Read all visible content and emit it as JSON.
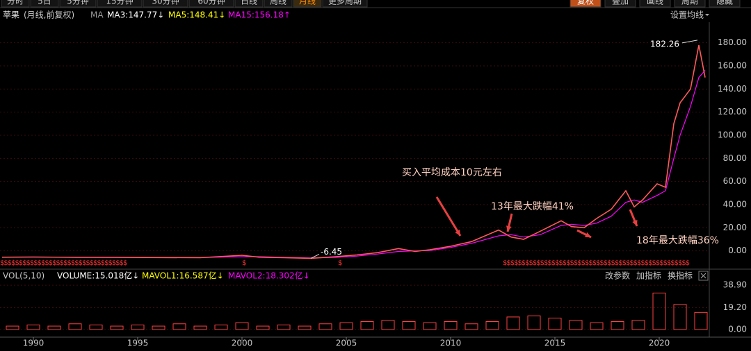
{
  "toolbar": {
    "tabs": [
      "分时",
      "5日",
      "5分钟",
      "15分钟",
      "30分钟",
      "60分钟",
      "日线",
      "周线",
      "月线",
      "更多周期"
    ],
    "active_tab": 8,
    "tools": [
      "复权",
      "叠加",
      "画线",
      "周期",
      "隐藏"
    ],
    "active_tool": 0
  },
  "info": {
    "name": "苹果",
    "mode": "(月线,前复权)",
    "ma_label": "MA",
    "ma3": "MA3:147.77↓",
    "ma5": "MA5:148.41↓",
    "ma15": "MA15:156.18↑",
    "settings": "设置均线"
  },
  "volume_info": {
    "label": "VOL(5,10)",
    "volume": "VOLUME:15.018亿↓",
    "mavol1": "MAVOL1:16.587亿↓",
    "mavol2": "MAVOL2:18.302亿↓",
    "buttons": [
      "改参数",
      "加指标",
      "换指标"
    ]
  },
  "chart_data": [
    {
      "type": "line",
      "color": "#ff5a5a",
      "ma_color": "#ff00ff",
      "x": [
        1988.5,
        1990,
        1992,
        1994,
        1996,
        1998,
        2000,
        2000.8,
        2002,
        2003.3,
        2004.5,
        2005.5,
        2006.5,
        2007.5,
        2008.3,
        2009,
        2010,
        2011,
        2012.3,
        2012.9,
        2013.5,
        2014.3,
        2015.3,
        2015.8,
        2016.4,
        2017,
        2017.7,
        2018.4,
        2018.8,
        2019.2,
        2019.9,
        2020.3,
        2020.7,
        2021,
        2021.5,
        2021.9,
        2022.2
      ],
      "values": [
        -5.5,
        -5.3,
        -5.6,
        -5.6,
        -5.8,
        -5.9,
        -3.8,
        -5.4,
        -5.9,
        -6.45,
        -5,
        -3.5,
        -1.5,
        2,
        -0.5,
        1,
        4,
        8,
        18,
        12,
        10,
        17,
        26,
        21,
        20,
        28,
        36,
        52,
        38,
        44,
        58,
        55,
        110,
        128,
        140,
        178,
        150
      ],
      "ma15_values": [
        -5.5,
        -5.4,
        -5.5,
        -5.6,
        -5.7,
        -5.8,
        -5,
        -5,
        -5.6,
        -6.1,
        -5.6,
        -4.5,
        -2.7,
        -0.5,
        0,
        0.3,
        3,
        6.5,
        13,
        14,
        12,
        14,
        22,
        23,
        22,
        24,
        30,
        42,
        44,
        42,
        48,
        52,
        80,
        100,
        125,
        150,
        156.18
      ],
      "high": 182.26,
      "high_x": 2021.9,
      "low": -6.45,
      "low_x": 2003.3,
      "xlim": [
        1988.4,
        2022.4
      ],
      "ylim": [
        -14,
        190
      ],
      "yticks": [
        {
          "value": 0,
          "label": "0.00"
        },
        {
          "value": 20,
          "label": "20.00"
        },
        {
          "value": 40,
          "label": "40.00"
        },
        {
          "value": 60,
          "label": "60.00"
        },
        {
          "value": 80,
          "label": "80.00"
        },
        {
          "value": 100,
          "label": "100.00"
        },
        {
          "value": 120,
          "label": "120.00"
        },
        {
          "value": 140,
          "label": "140.00"
        },
        {
          "value": 160,
          "label": "160.00"
        },
        {
          "value": 180,
          "label": "180.00"
        }
      ],
      "grid": true,
      "annotations": [
        "买入平均成本10元左右",
        "13年最大跌幅41%",
        "18年最大跌幅36%"
      ],
      "dividend_marks": [
        {
          "x": 1988.4,
          "text": "$$$$$$$$$$$$$$$$$$$$$$$$$$$$$$$$$$"
        },
        {
          "x": 2000,
          "text": "$"
        },
        {
          "x": 2004.6,
          "text": "$"
        },
        {
          "x": 2012.5,
          "text": "$$$$$$$$$$$$$$$$$$$$$$$$$$$$$$$$$$$$$$$$$$$$$$$$$$"
        }
      ]
    },
    {
      "type": "bar",
      "color": "#ff4040",
      "x": [
        1989,
        1990,
        1991,
        1992,
        1993,
        1994,
        1995,
        1996,
        1997,
        1998,
        1999,
        2000,
        2001,
        2002,
        2003,
        2004,
        2005,
        2006,
        2007,
        2008,
        2009,
        2010,
        2011,
        2012,
        2013,
        2014,
        2015,
        2016,
        2017,
        2018,
        2019,
        2020,
        2021,
        2022
      ],
      "values": [
        3,
        4,
        3,
        5,
        4,
        3,
        4,
        3,
        5,
        3,
        4,
        6,
        3,
        4,
        3,
        5,
        6,
        7,
        8,
        7,
        6,
        7,
        5,
        7,
        11,
        12,
        10,
        8,
        6,
        7,
        8,
        32,
        22,
        15.018
      ],
      "xlim": [
        1988.4,
        2022.4
      ],
      "ylim": [
        -4.25,
        43.2
      ],
      "yticks": [
        {
          "value": 0,
          "label": "0.00"
        },
        {
          "value": 19.2,
          "label": "19.20"
        },
        {
          "value": 38.9,
          "label": "38.90"
        }
      ],
      "xticks": [
        1990,
        1995,
        2000,
        2005,
        2010,
        2015,
        2020
      ]
    }
  ]
}
